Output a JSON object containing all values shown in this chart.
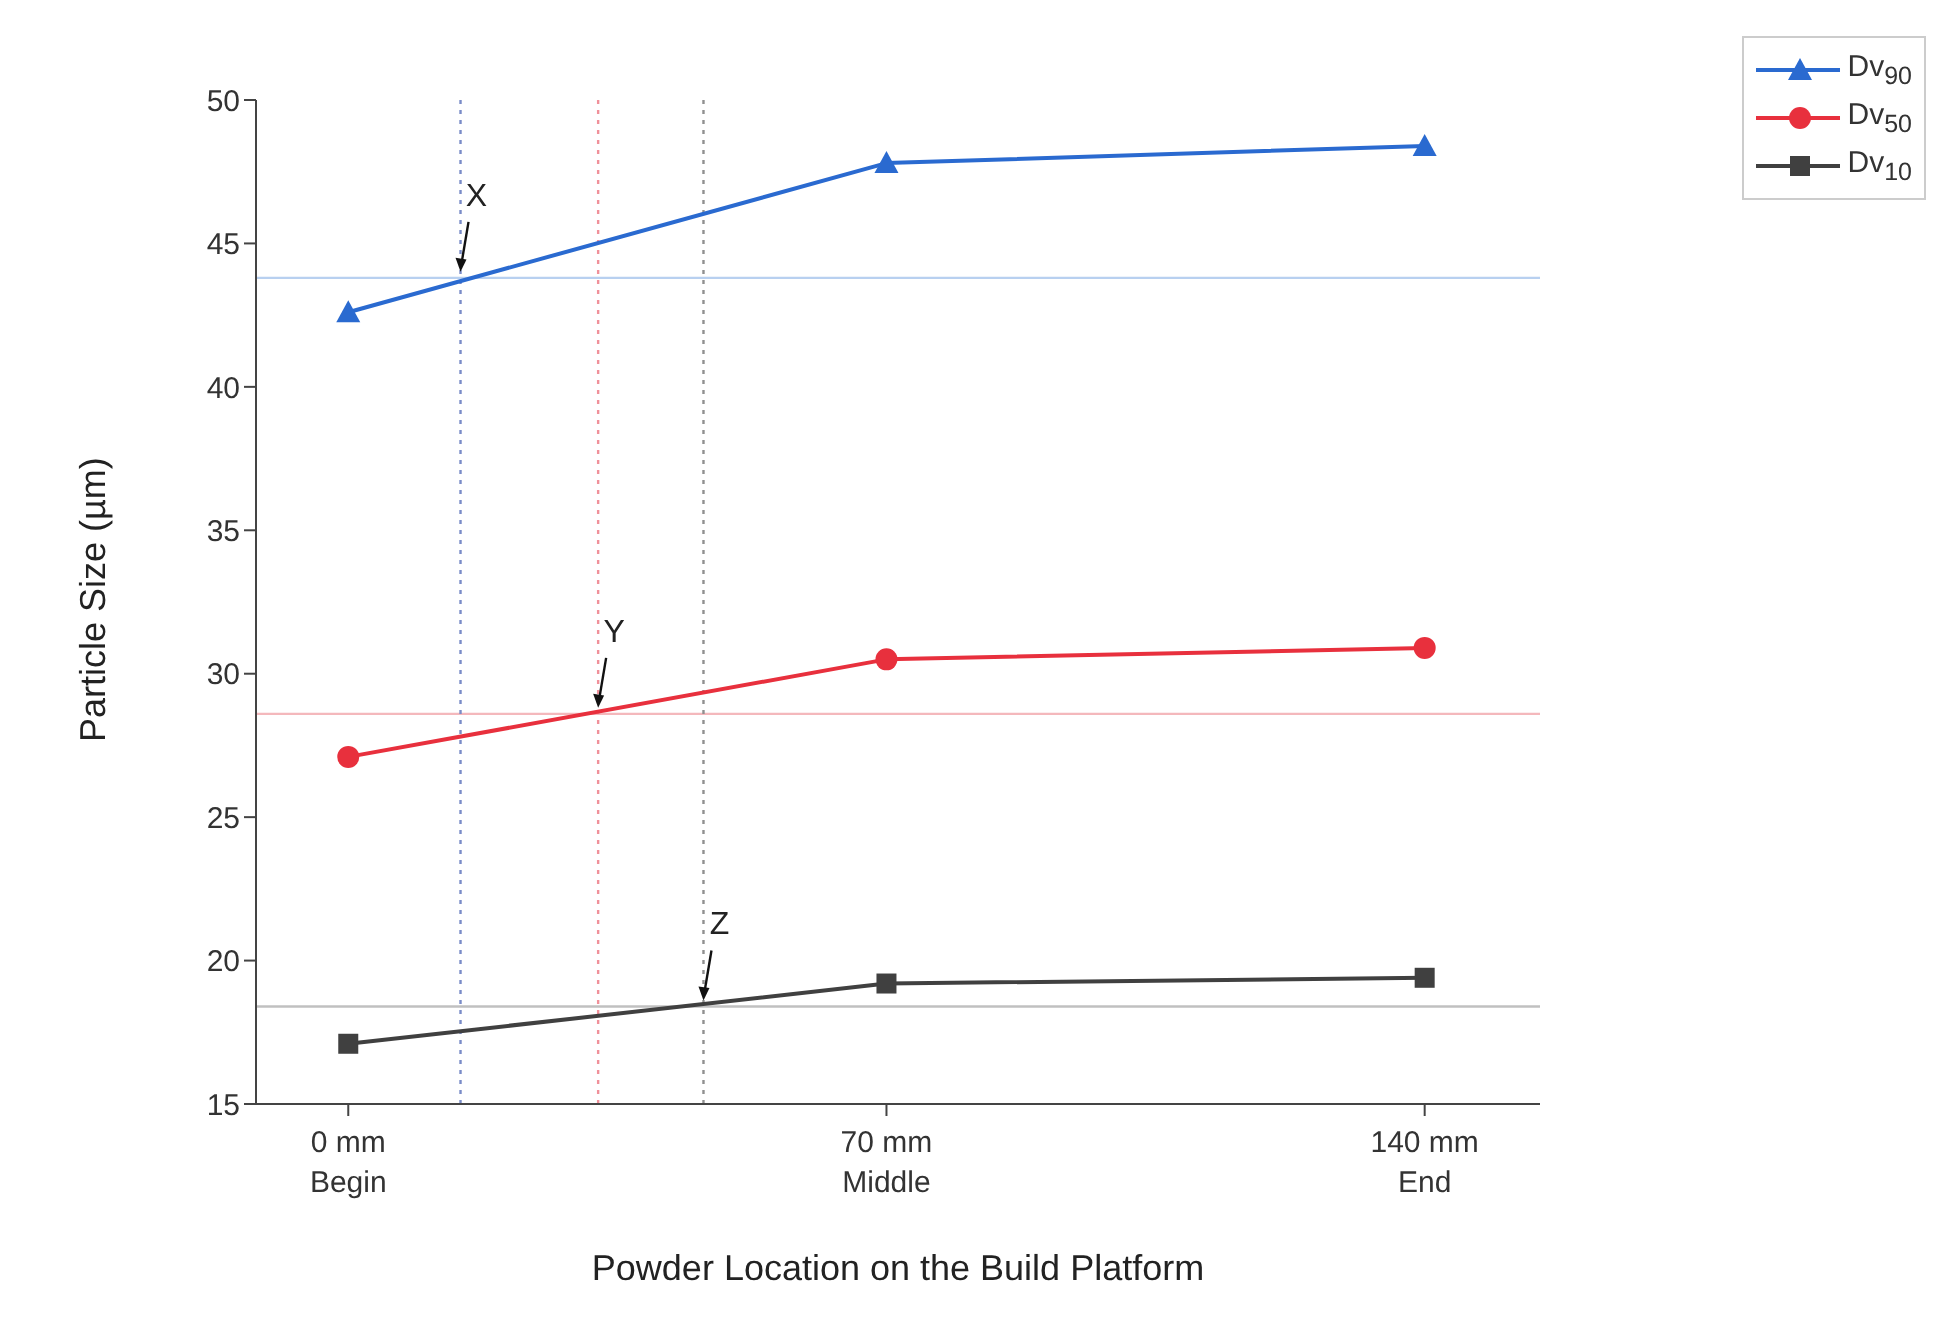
{
  "chart_data": {
    "type": "line",
    "xlabel": "Powder Location on the Build Platform",
    "ylabel": "Particle Size (µm)",
    "x": [
      0,
      70,
      140
    ],
    "xlim": [
      -12,
      155
    ],
    "xticks": [
      {
        "value": 0,
        "label": "0 mm\nBegin"
      },
      {
        "value": 70,
        "label": "70 mm\nMiddle"
      },
      {
        "value": 140,
        "label": "140 mm\nEnd"
      }
    ],
    "ylim": [
      15,
      50
    ],
    "yticks": [
      15,
      20,
      25,
      30,
      35,
      40,
      45,
      50
    ],
    "series": [
      {
        "name": "Dv$_{90}$",
        "color": "#2a6ad0",
        "marker": "triangle",
        "values": [
          42.6,
          47.8,
          48.4
        ]
      },
      {
        "name": "Dv$_{50}$",
        "color": "#e8303d",
        "marker": "circle",
        "values": [
          27.1,
          30.5,
          30.9
        ]
      },
      {
        "name": "Dv$_{10}$",
        "color": "#404040",
        "marker": "square",
        "values": [
          17.1,
          19.2,
          19.4
        ]
      }
    ],
    "ref_lines": [
      {
        "axis": "y",
        "value": 43.8,
        "color": "#b8d0f0",
        "line_style": "solid"
      },
      {
        "axis": "y",
        "value": 28.6,
        "color": "#f4b8bc",
        "line_style": "solid"
      },
      {
        "axis": "y",
        "value": 18.4,
        "color": "#c0c0c0",
        "line_style": "solid"
      },
      {
        "axis": "x",
        "value": 14.6,
        "color": "#7a8cc8",
        "line_style": "dotted"
      },
      {
        "axis": "x",
        "value": 32.5,
        "color": "#f0909a",
        "line_style": "dotted"
      },
      {
        "axis": "x",
        "value": 46.2,
        "color": "#909090",
        "line_style": "dotted"
      }
    ],
    "annotations": [
      {
        "text": "X",
        "x": 14.6,
        "y": 43.8
      },
      {
        "text": "Y",
        "x": 32.5,
        "y": 28.6
      },
      {
        "text": "Z",
        "x": 46.2,
        "y": 18.4
      }
    ],
    "legend": "top right"
  }
}
